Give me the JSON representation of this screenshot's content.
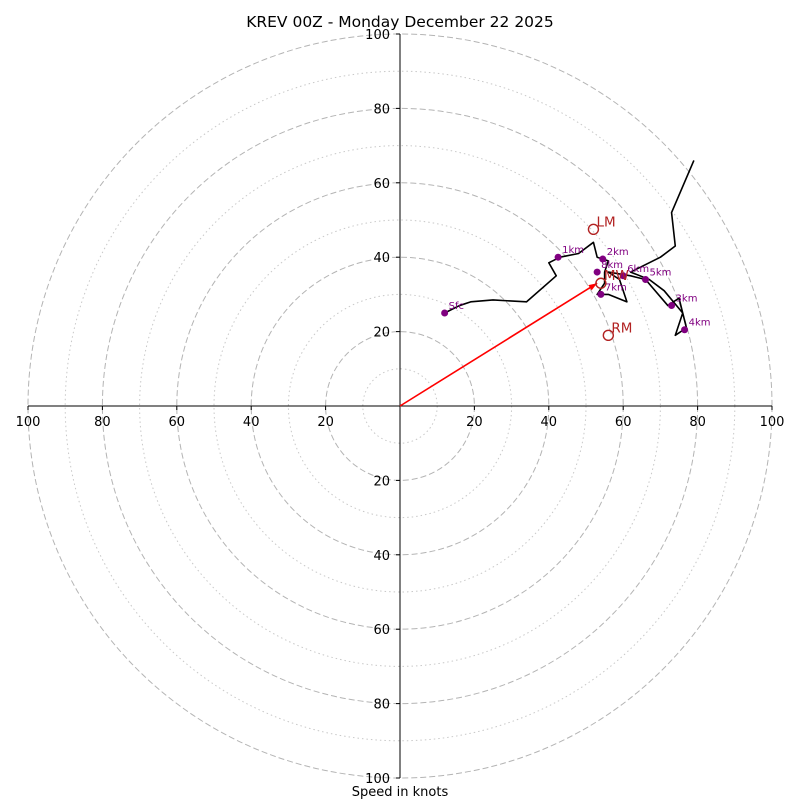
{
  "chart_data": {
    "type": "hodograph",
    "title": "KREV 00Z - Monday December 22 2025",
    "xlabel": "Speed in knots",
    "units": "knots",
    "xlim": [
      -100,
      100
    ],
    "ylim": [
      -100,
      100
    ],
    "rings_major": [
      20,
      40,
      60,
      80,
      100
    ],
    "rings_minor": [
      10,
      30,
      50,
      70,
      90
    ],
    "x_tick_labels": [
      "100",
      "80",
      "60",
      "40",
      "20",
      "20",
      "40",
      "60",
      "80",
      "100"
    ],
    "x_tick_values": [
      -100,
      -80,
      -60,
      -40,
      -20,
      20,
      40,
      60,
      80,
      100
    ],
    "y_tick_labels": [
      "100",
      "80",
      "60",
      "40",
      "20",
      "20",
      "40",
      "60",
      "80",
      "100"
    ],
    "y_tick_values": [
      100,
      80,
      60,
      40,
      20,
      -20,
      -40,
      -60,
      -80,
      -100
    ],
    "profile": {
      "name": "wind profile",
      "color": "#000000",
      "points": [
        [
          12,
          25
        ],
        [
          16,
          27
        ],
        [
          19,
          28
        ],
        [
          25,
          28.5
        ],
        [
          34,
          28
        ],
        [
          42,
          35
        ],
        [
          40,
          38.5
        ],
        [
          43,
          40
        ],
        [
          48,
          41
        ],
        [
          52,
          44
        ],
        [
          53,
          40
        ],
        [
          56,
          39
        ],
        [
          55,
          36
        ],
        [
          55,
          33
        ],
        [
          53,
          30
        ],
        [
          56,
          30
        ],
        [
          61,
          28
        ],
        [
          59,
          34
        ],
        [
          56,
          36
        ],
        [
          62,
          35
        ],
        [
          66,
          34
        ],
        [
          72,
          27
        ],
        [
          75,
          29
        ],
        [
          77,
          21
        ],
        [
          74,
          19
        ],
        [
          76,
          25
        ],
        [
          71,
          31
        ],
        [
          67,
          34
        ],
        [
          62,
          36
        ],
        [
          70,
          40
        ],
        [
          74,
          43
        ],
        [
          73,
          52
        ],
        [
          79,
          66
        ]
      ]
    },
    "height_markers": [
      {
        "label": "Sfc",
        "u": 12,
        "v": 25
      },
      {
        "label": "1km",
        "u": 42.5,
        "v": 40
      },
      {
        "label": "2km",
        "u": 54.5,
        "v": 39.5
      },
      {
        "label": "3km",
        "u": 73,
        "v": 27
      },
      {
        "label": "4km",
        "u": 76.5,
        "v": 20.5
      },
      {
        "label": "5km",
        "u": 66,
        "v": 34
      },
      {
        "label": "6km",
        "u": 60,
        "v": 35
      },
      {
        "label": "7km",
        "u": 54,
        "v": 30
      },
      {
        "label": "8km",
        "u": 53,
        "v": 36
      }
    ],
    "storm_motion": [
      {
        "label": "LM",
        "u": 52,
        "v": 47.5
      },
      {
        "label": "MW",
        "u": 54,
        "v": 33
      },
      {
        "label": "RM",
        "u": 56,
        "v": 19
      }
    ],
    "mean_wind_vector": {
      "u": 53,
      "v": 33,
      "color": "#ff0000"
    }
  }
}
